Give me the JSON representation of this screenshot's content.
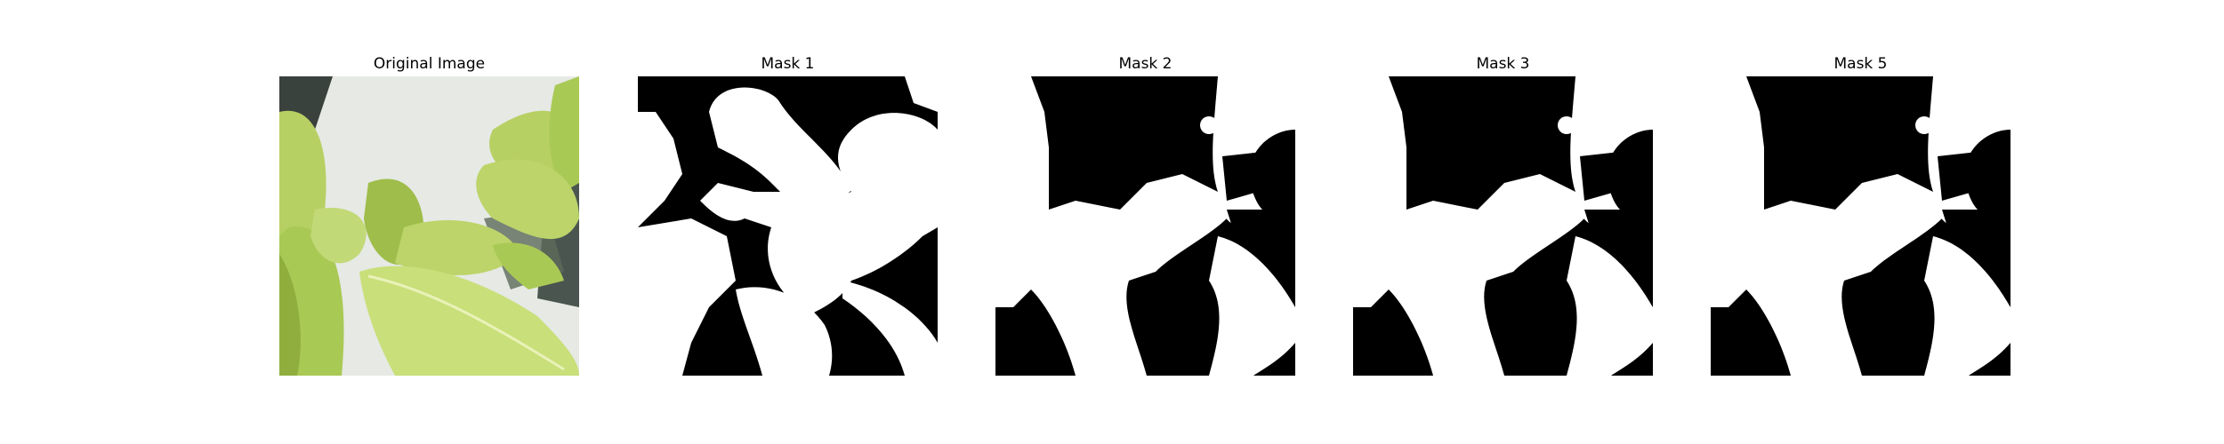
{
  "figure": {
    "panels": [
      {
        "title": "Original Image",
        "kind": "photo"
      },
      {
        "title": "Mask 1",
        "kind": "mask-1"
      },
      {
        "title": "Mask 2",
        "kind": "mask-2"
      },
      {
        "title": "Mask 3",
        "kind": "mask-3"
      },
      {
        "title": "Mask 5",
        "kind": "mask-5"
      }
    ]
  },
  "colors": {
    "mask_foreground": "#ffffff",
    "mask_background": "#000000",
    "leaf_light": "#c9df7a",
    "leaf_mid": "#a9c955",
    "leaf_dark": "#6f8f2e",
    "background_wall": "#e6e9e4",
    "background_shadow": "#4b5550"
  }
}
